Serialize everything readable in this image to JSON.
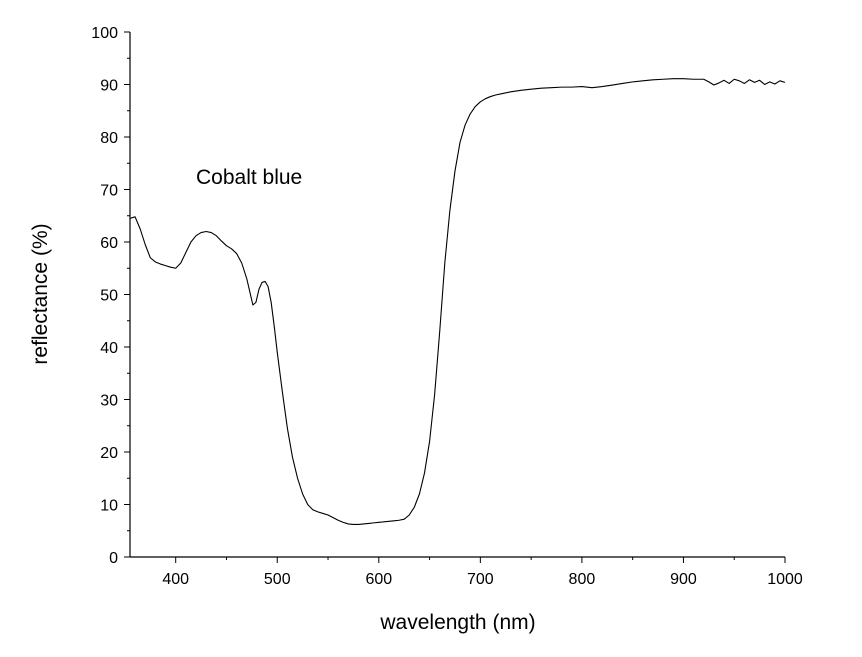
{
  "chart_data": {
    "type": "line",
    "title": "",
    "xlabel": "wavelength (nm)",
    "ylabel": "reflectance (%)",
    "xlim": [
      355,
      1000
    ],
    "ylim": [
      0,
      100
    ],
    "xticks": [
      "400",
      "500",
      "600",
      "700",
      "800",
      "900",
      "1000"
    ],
    "yticks": [
      "0",
      "10",
      "20",
      "30",
      "40",
      "50",
      "60",
      "70",
      "80",
      "90",
      "100"
    ],
    "grid": false,
    "annotation": "Cobalt blue",
    "line_color": "#000000",
    "series": [
      {
        "x": [
          355,
          360,
          365,
          370,
          375,
          380,
          385,
          390,
          395,
          400,
          405,
          410,
          415,
          420,
          425,
          430,
          435,
          440,
          445,
          450,
          455,
          460,
          465,
          470,
          473,
          476,
          479,
          482,
          485,
          488,
          491,
          494,
          497,
          500,
          505,
          510,
          515,
          520,
          525,
          530,
          535,
          540,
          545,
          550,
          555,
          560,
          565,
          570,
          575,
          580,
          585,
          590,
          595,
          600,
          605,
          610,
          615,
          620,
          625,
          630,
          635,
          640,
          645,
          650,
          655,
          660,
          665,
          670,
          675,
          680,
          685,
          690,
          695,
          700,
          705,
          710,
          715,
          720,
          730,
          740,
          750,
          760,
          770,
          780,
          790,
          800,
          810,
          820,
          830,
          840,
          850,
          860,
          870,
          880,
          890,
          900,
          910,
          920,
          925,
          930,
          935,
          940,
          945,
          950,
          955,
          960,
          965,
          970,
          975,
          980,
          985,
          990,
          995,
          1000
        ],
        "y": [
          64.5,
          64.8,
          62.5,
          59.5,
          57.0,
          56.2,
          55.8,
          55.5,
          55.2,
          55.0,
          56.0,
          58.0,
          60.0,
          61.2,
          61.8,
          62.0,
          61.8,
          61.2,
          60.2,
          59.3,
          58.7,
          57.8,
          56.0,
          53.0,
          50.5,
          48.0,
          48.5,
          51.0,
          52.3,
          52.5,
          51.5,
          48.5,
          44.0,
          39.0,
          31.5,
          24.5,
          19.0,
          15.0,
          12.0,
          10.0,
          9.0,
          8.6,
          8.3,
          8.0,
          7.5,
          7.0,
          6.6,
          6.3,
          6.2,
          6.2,
          6.3,
          6.4,
          6.5,
          6.6,
          6.7,
          6.8,
          6.9,
          7.0,
          7.2,
          8.0,
          9.5,
          12.0,
          16.0,
          22.0,
          31.0,
          43.0,
          56.0,
          66.0,
          73.5,
          79.0,
          82.3,
          84.4,
          85.8,
          86.7,
          87.3,
          87.7,
          88.0,
          88.2,
          88.6,
          88.9,
          89.1,
          89.3,
          89.4,
          89.5,
          89.5,
          89.6,
          89.4,
          89.6,
          89.9,
          90.2,
          90.5,
          90.7,
          90.9,
          91.0,
          91.1,
          91.1,
          91.0,
          91.0,
          90.5,
          89.9,
          90.3,
          90.8,
          90.2,
          91.0,
          90.7,
          90.2,
          90.9,
          90.4,
          90.8,
          90.0,
          90.5,
          90.1,
          90.7,
          90.4
        ]
      }
    ]
  }
}
